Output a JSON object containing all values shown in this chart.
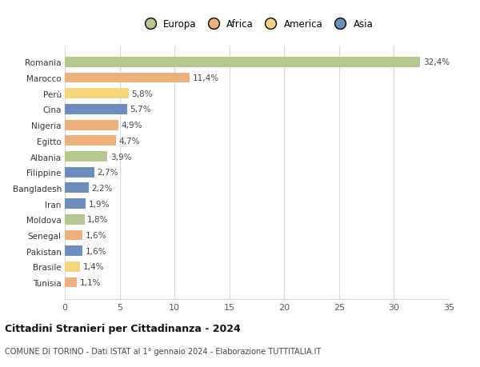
{
  "categories": [
    "Romania",
    "Marocco",
    "Perù",
    "Cina",
    "Nigeria",
    "Egitto",
    "Albania",
    "Filippine",
    "Bangladesh",
    "Iran",
    "Moldova",
    "Senegal",
    "Pakistan",
    "Brasile",
    "Tunisia"
  ],
  "values": [
    32.4,
    11.4,
    5.8,
    5.7,
    4.9,
    4.7,
    3.9,
    2.7,
    2.2,
    1.9,
    1.8,
    1.6,
    1.6,
    1.4,
    1.1
  ],
  "labels": [
    "32,4%",
    "11,4%",
    "5,8%",
    "5,7%",
    "4,9%",
    "4,7%",
    "3,9%",
    "2,7%",
    "2,2%",
    "1,9%",
    "1,8%",
    "1,6%",
    "1,6%",
    "1,4%",
    "1,1%"
  ],
  "colors": [
    "#b5c98e",
    "#f0b07a",
    "#f5d57a",
    "#6a8fbf",
    "#f0b07a",
    "#f0b07a",
    "#b5c98e",
    "#6a8fbf",
    "#6a8fbf",
    "#6a8fbf",
    "#b5c98e",
    "#f0b07a",
    "#6a8fbf",
    "#f5d57a",
    "#f0b07a"
  ],
  "continents": [
    "Europa",
    "Africa",
    "America",
    "Asia"
  ],
  "legend_colors": [
    "#b5c98e",
    "#f0b07a",
    "#f5d57a",
    "#6a8fbf"
  ],
  "title": "Cittadini Stranieri per Cittadinanza - 2024",
  "subtitle": "COMUNE DI TORINO - Dati ISTAT al 1° gennaio 2024 - Elaborazione TUTTITALIA.IT",
  "xlim": [
    0,
    35
  ],
  "xticks": [
    0,
    5,
    10,
    15,
    20,
    25,
    30,
    35
  ],
  "background_color": "#ffffff",
  "grid_color": "#d8d8d8"
}
